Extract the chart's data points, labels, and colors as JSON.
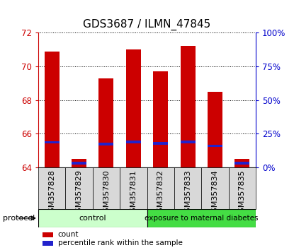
{
  "title": "GDS3687 / ILMN_47845",
  "samples": [
    "GSM357828",
    "GSM357829",
    "GSM357830",
    "GSM357831",
    "GSM357832",
    "GSM357833",
    "GSM357834",
    "GSM357835"
  ],
  "bar_bottom": 64,
  "count_values": [
    70.85,
    64.5,
    69.3,
    71.0,
    69.7,
    71.2,
    68.5,
    64.5
  ],
  "percentile_values": [
    65.5,
    64.27,
    65.4,
    65.52,
    65.42,
    65.52,
    65.28,
    64.27
  ],
  "percentile_heights": [
    0.15,
    0.15,
    0.15,
    0.15,
    0.15,
    0.15,
    0.15,
    0.15
  ],
  "ylim": [
    64,
    72
  ],
  "y2lim": [
    0,
    100
  ],
  "yticks": [
    64,
    66,
    68,
    70,
    72
  ],
  "y2ticks": [
    0,
    25,
    50,
    75,
    100
  ],
  "y2ticklabels": [
    "0%",
    "25%",
    "50%",
    "75%",
    "100%"
  ],
  "bar_color": "#cc0000",
  "blue_color": "#2222cc",
  "bar_width": 0.55,
  "control_samples": 4,
  "control_label": "control",
  "treatment_label": "exposure to maternal diabetes",
  "control_bg": "#ccffcc",
  "treatment_bg": "#44dd44",
  "protocol_label": "protocol",
  "legend_count_label": "count",
  "legend_pct_label": "percentile rank within the sample",
  "left_color": "#cc0000",
  "right_color": "#0000cc",
  "title_fontsize": 11,
  "tick_fontsize": 8.5,
  "xtick_fontsize": 8,
  "label_fontsize": 8,
  "bg_plot": "#ffffff",
  "spine_color": "#888888"
}
